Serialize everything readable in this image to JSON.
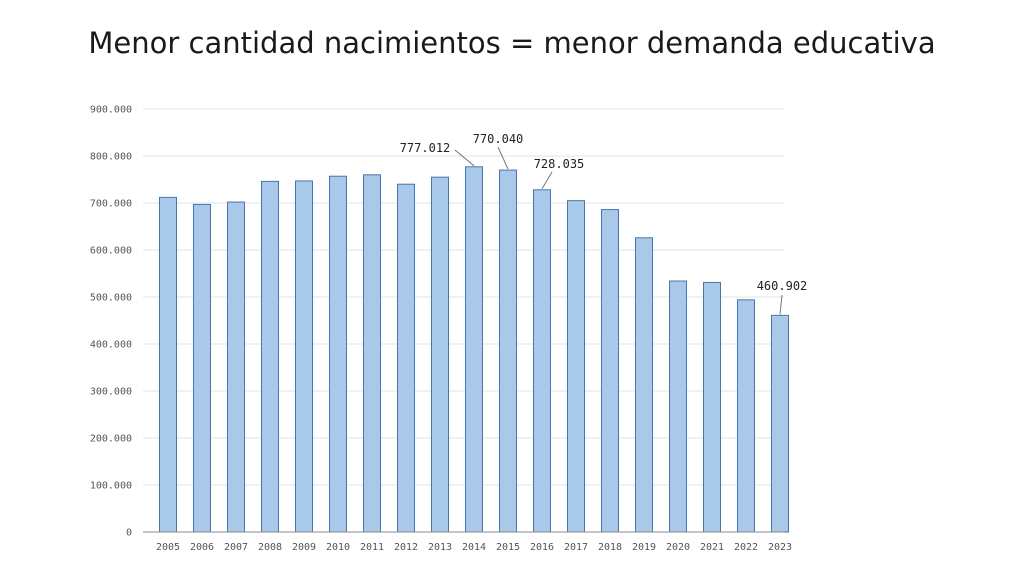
{
  "slide": {
    "title": "Menor cantidad nacimientos = menor demanda educativa"
  },
  "colors": {
    "bar_fill": "#a9c9ea",
    "bar_stroke": "#4a76a8",
    "grid": "#e3e3e3",
    "axis": "#888888"
  },
  "chart_data": {
    "type": "bar",
    "title": "",
    "xlabel": "",
    "ylabel": "",
    "categories": [
      "2005",
      "2006",
      "2007",
      "2008",
      "2009",
      "2010",
      "2011",
      "2012",
      "2013",
      "2014",
      "2015",
      "2016",
      "2017",
      "2018",
      "2019",
      "2020",
      "2021",
      "2022",
      "2023"
    ],
    "values": [
      712000,
      697000,
      702000,
      746000,
      747000,
      757000,
      760000,
      740000,
      755000,
      777012,
      770040,
      728035,
      705000,
      686000,
      626000,
      534000,
      531000,
      494000,
      460902
    ],
    "ylim": [
      0,
      900000
    ],
    "y_ticks": [
      0,
      100000,
      200000,
      300000,
      400000,
      500000,
      600000,
      700000,
      800000,
      900000
    ],
    "y_tick_labels": [
      "0",
      "100.000",
      "200.000",
      "300.000",
      "400.000",
      "500.000",
      "600.000",
      "700.000",
      "800.000",
      "900.000"
    ],
    "grid": true,
    "data_labels": [
      {
        "category": "2014",
        "text": "777.012"
      },
      {
        "category": "2015",
        "text": "770.040"
      },
      {
        "category": "2016",
        "text": "728.035"
      },
      {
        "category": "2023",
        "text": "460.902"
      }
    ]
  }
}
